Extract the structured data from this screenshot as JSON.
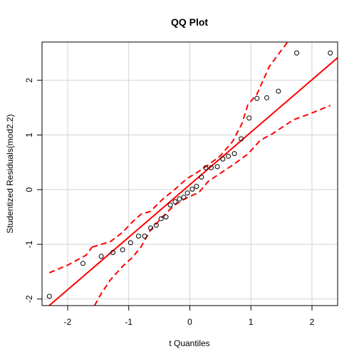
{
  "chart_data": {
    "type": "scatter",
    "title": "QQ Plot",
    "xlabel": "t Quantiles",
    "ylabel": "Studentized Residuals(mod2.2)",
    "xlim": [
      -2.42,
      2.42
    ],
    "ylim": [
      -2.12,
      2.7
    ],
    "x_ticks": [
      -2,
      -1,
      0,
      1,
      2
    ],
    "y_ticks": [
      -2,
      -1,
      0,
      1,
      2
    ],
    "x_tick_labels": [
      "-2",
      "-1",
      "0",
      "1",
      "2"
    ],
    "y_tick_labels": [
      "-2",
      "-1",
      "0",
      "1",
      "2"
    ],
    "grid": true,
    "colors": {
      "reference_line": "#ff0000",
      "envelope": "#ff0000",
      "points": "#000000",
      "grid": "#d3d3d3"
    },
    "points": {
      "x": [
        -2.3,
        -1.75,
        -1.45,
        -1.26,
        -1.1,
        -0.97,
        -0.84,
        -0.74,
        -0.64,
        -0.55,
        -0.47,
        -0.39,
        -0.32,
        -0.24,
        -0.17,
        -0.1,
        -0.04,
        0.04,
        0.11,
        0.19,
        0.26,
        0.35,
        0.45,
        0.54,
        0.63,
        0.73,
        0.84,
        0.97,
        1.1,
        1.26,
        1.45,
        1.75,
        2.3
      ],
      "y": [
        -1.95,
        -1.35,
        -1.22,
        -1.15,
        -1.1,
        -0.97,
        -0.85,
        -0.85,
        -0.7,
        -0.65,
        -0.53,
        -0.5,
        -0.28,
        -0.22,
        -0.17,
        -0.14,
        -0.06,
        0.01,
        0.06,
        0.23,
        0.4,
        0.4,
        0.42,
        0.56,
        0.61,
        0.66,
        0.93,
        1.31,
        1.67,
        1.68,
        1.8,
        2.5,
        2.5
      ]
    },
    "reference_line": {
      "intercept": 0.09,
      "slope": 0.96
    },
    "envelope_upper": {
      "x": [
        -1.6,
        -1.3,
        -1.1,
        -0.95,
        -0.8,
        -0.65,
        -0.45,
        -0.25,
        -0.05,
        0.1,
        0.3,
        0.5,
        0.7,
        0.85,
        0.95,
        1.1,
        1.3,
        1.6
      ],
      "y": [
        -1.05,
        -0.95,
        -0.78,
        -0.6,
        -0.45,
        -0.4,
        -0.18,
        0.0,
        0.2,
        0.3,
        0.45,
        0.62,
        0.88,
        1.2,
        1.55,
        1.75,
        2.25,
        2.7
      ]
    },
    "envelope_lower": {
      "x": [
        -1.56,
        -1.45,
        -1.3,
        -1.1,
        -0.95,
        -0.8,
        -0.65,
        -0.45,
        -0.25,
        -0.05,
        0.15,
        0.3,
        0.5,
        0.7,
        0.95,
        1.15,
        1.35,
        1.7,
        1.95,
        2.3
      ],
      "y": [
        -2.12,
        -1.9,
        -1.65,
        -1.4,
        -1.25,
        -1.05,
        -0.75,
        -0.5,
        -0.28,
        -0.15,
        -0.05,
        0.15,
        0.3,
        0.45,
        0.65,
        0.9,
        1.02,
        1.28,
        1.38,
        1.54
      ]
    },
    "envelope_far_left": {
      "x": [
        -2.3,
        -2.0,
        -1.7,
        -1.6
      ],
      "y": [
        -1.52,
        -1.38,
        -1.2,
        -1.05
      ]
    }
  }
}
